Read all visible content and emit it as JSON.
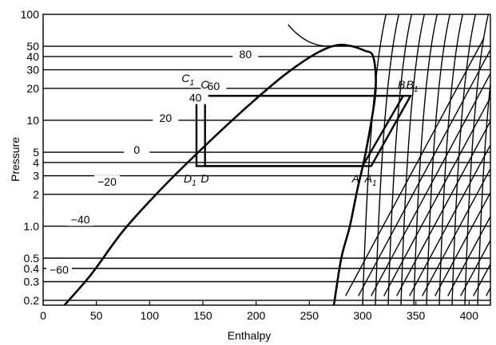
{
  "chart_data": {
    "type": "line",
    "xlabel": "Enthalpy",
    "ylabel": "Pressure",
    "xlim": [
      0,
      420
    ],
    "ylim": [
      0.18,
      100
    ],
    "yscale": "log",
    "grid": false,
    "x_ticks": [
      "0",
      "50",
      "100",
      "150",
      "200",
      "250",
      "300",
      "350",
      "400"
    ],
    "y_ticks": [
      {
        "value": 100,
        "label": "100"
      },
      {
        "value": 50,
        "label": "50"
      },
      {
        "value": 40,
        "label": "40"
      },
      {
        "value": 30,
        "label": "30"
      },
      {
        "value": 20,
        "label": "20"
      },
      {
        "value": 10,
        "label": "10"
      },
      {
        "value": 5,
        "label": "5"
      },
      {
        "value": 4,
        "label": "4"
      },
      {
        "value": 3,
        "label": "3"
      },
      {
        "value": 2,
        "label": "2"
      },
      {
        "value": 1.0,
        "label": "1.0"
      },
      {
        "value": 0.5,
        "label": "0.5"
      },
      {
        "value": 0.4,
        "label": "0.4"
      },
      {
        "value": 0.3,
        "label": "0.3"
      },
      {
        "value": 0.2,
        "label": "0.2"
      }
    ],
    "saturated_liquid": [
      [
        20,
        0.18
      ],
      [
        45,
        0.35
      ],
      [
        75,
        0.9
      ],
      [
        110,
        2.2
      ],
      [
        150,
        5.5
      ],
      [
        190,
        13
      ],
      [
        225,
        26
      ],
      [
        255,
        42
      ],
      [
        275,
        51
      ],
      [
        290,
        50
      ],
      [
        303,
        45
      ]
    ],
    "saturated_vapor": [
      [
        273,
        0.18
      ],
      [
        280,
        0.5
      ],
      [
        288,
        1.0
      ],
      [
        295,
        2.2
      ],
      [
        302,
        4.5
      ],
      [
        308,
        9.5
      ],
      [
        312,
        18
      ],
      [
        312,
        30
      ],
      [
        309,
        42
      ],
      [
        303,
        45
      ]
    ],
    "temperature_labels": [
      {
        "label": "80",
        "h": 190,
        "p": 40
      },
      {
        "label": "60",
        "h": 160,
        "p": 20
      },
      {
        "label": "40",
        "h": 143,
        "p": 15.5
      },
      {
        "label": "20",
        "h": 115,
        "p": 10
      },
      {
        "label": "0",
        "h": 88,
        "p": 5
      },
      {
        "label": "−20",
        "h": 60,
        "p": 2.5
      },
      {
        "label": "−40",
        "h": 35,
        "p": 1.1
      },
      {
        "label": "−60",
        "h": 15,
        "p": 0.37
      }
    ],
    "cycles": [
      {
        "points": {
          "A": [
            300,
            3.7
          ],
          "B": [
            338,
            17
          ],
          "C": [
            152,
            17
          ],
          "D": [
            152,
            3.7
          ]
        }
      },
      {
        "points": {
          "A1": [
            308,
            3.7
          ],
          "B1": [
            345,
            17
          ],
          "C1": [
            144,
            17
          ],
          "D1": [
            144,
            3.7
          ]
        }
      }
    ],
    "point_labels": [
      {
        "name": "C",
        "sub": "1",
        "h": 130,
        "p": 23
      },
      {
        "name": "C",
        "sub": "",
        "h": 148,
        "p": 20
      },
      {
        "name": "B",
        "sub": "",
        "h": 333,
        "p": 20
      },
      {
        "name": "B",
        "sub": "1",
        "h": 341,
        "p": 20
      },
      {
        "name": "D",
        "sub": "1",
        "h": 132,
        "p": 2.6
      },
      {
        "name": "D",
        "sub": "",
        "h": 148,
        "p": 2.6
      },
      {
        "name": "A",
        "sub": "",
        "h": 290,
        "p": 2.6
      },
      {
        "name": "A",
        "sub": "1",
        "h": 302,
        "p": 2.6
      }
    ]
  }
}
